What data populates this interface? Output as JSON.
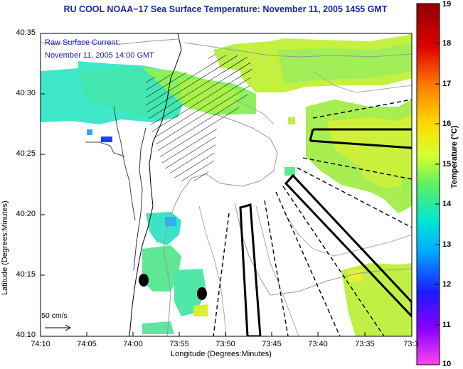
{
  "title": "RU COOL  NOAA−17  Sea Surface Temperature:  November 11, 2005 1455 GMT",
  "current_legend": {
    "line1": "Raw Surface Current:",
    "line2": "November 11, 2005 14:00 GMT"
  },
  "scale_arrow_label": "50 cm/s",
  "axes": {
    "x_label": "Longitude (Degrees:Minutes)",
    "y_label": "Latitude (Degrees:Minutes)",
    "x_ticks": [
      "74:10",
      "74:05",
      "74:00",
      "73:55",
      "73:50",
      "73:45",
      "73:40",
      "73:35",
      "73:3"
    ],
    "y_ticks": [
      "40:35",
      "40:30",
      "40:25",
      "40:20",
      "40:15",
      "40:10"
    ]
  },
  "colorbar": {
    "title": "Temperature (°C)",
    "min": 10,
    "max": 19,
    "ticks": [
      "19",
      "18",
      "17",
      "16",
      "15",
      "14",
      "13",
      "12",
      "11",
      "10"
    ],
    "colors": [
      "#ff44ee",
      "#8800ff",
      "#1a1aff",
      "#00b0ff",
      "#00e8d0",
      "#60f060",
      "#d8ff30",
      "#ffd800",
      "#ff8000",
      "#e00000",
      "#900000"
    ]
  }
}
